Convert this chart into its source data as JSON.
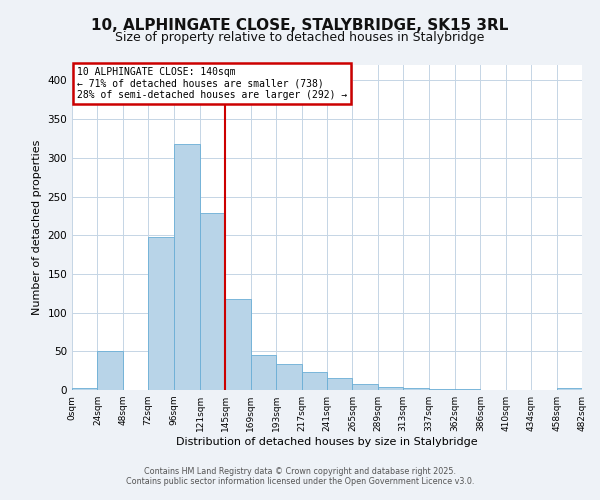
{
  "title": "10, ALPHINGATE CLOSE, STALYBRIDGE, SK15 3RL",
  "subtitle": "Size of property relative to detached houses in Stalybridge",
  "xlabel": "Distribution of detached houses by size in Stalybridge",
  "ylabel": "Number of detached properties",
  "bar_color": "#b8d4e8",
  "bar_edge_color": "#6aaed6",
  "bin_edges": [
    0,
    24,
    48,
    72,
    96,
    121,
    145,
    169,
    193,
    217,
    241,
    265,
    289,
    313,
    337,
    362,
    386,
    410,
    434,
    458,
    482
  ],
  "bar_heights": [
    2,
    50,
    0,
    198,
    318,
    229,
    118,
    45,
    33,
    23,
    15,
    8,
    4,
    2,
    1,
    1,
    0,
    0,
    0,
    2
  ],
  "tick_labels": [
    "0sqm",
    "24sqm",
    "48sqm",
    "72sqm",
    "96sqm",
    "121sqm",
    "145sqm",
    "169sqm",
    "193sqm",
    "217sqm",
    "241sqm",
    "265sqm",
    "289sqm",
    "313sqm",
    "337sqm",
    "362sqm",
    "386sqm",
    "410sqm",
    "434sqm",
    "458sqm",
    "482sqm"
  ],
  "ylim": [
    0,
    420
  ],
  "yticks": [
    0,
    50,
    100,
    150,
    200,
    250,
    300,
    350,
    400
  ],
  "vline_x": 145,
  "vline_color": "#cc0000",
  "annotation_line1": "10 ALPHINGATE CLOSE: 140sqm",
  "annotation_line2": "← 71% of detached houses are smaller (738)",
  "annotation_line3": "28% of semi-detached houses are larger (292) →",
  "footer1": "Contains HM Land Registry data © Crown copyright and database right 2025.",
  "footer2": "Contains public sector information licensed under the Open Government Licence v3.0.",
  "background_color": "#eef2f7",
  "plot_bg_color": "#ffffff",
  "title_fontsize": 11,
  "subtitle_fontsize": 9,
  "annotation_box_edge_color": "#cc0000",
  "grid_color": "#c5d5e5",
  "footer_color": "#555555"
}
